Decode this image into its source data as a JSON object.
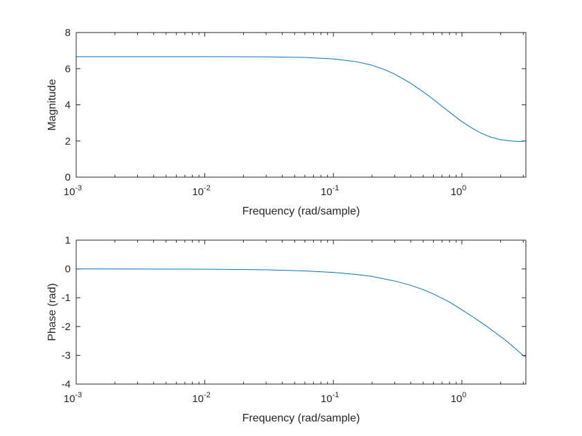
{
  "chart_data": [
    {
      "type": "line",
      "name": "magnitude",
      "xscale": "log",
      "xlim": [
        0.001,
        3.14159
      ],
      "ylim": [
        0,
        8
      ],
      "xlabel": "Frequency (rad/sample)",
      "ylabel": "Magnitude",
      "yticks": [
        "0",
        "2",
        "4",
        "6",
        "8"
      ],
      "xticks": [
        {
          "base": "10",
          "exp": "-3"
        },
        {
          "base": "10",
          "exp": "-2"
        },
        {
          "base": "10",
          "exp": "-1"
        },
        {
          "base": "10",
          "exp": "0"
        }
      ],
      "grid": false,
      "line_color": "#0072BD",
      "series": [
        {
          "x": [
            0.001,
            0.003,
            0.01,
            0.03,
            0.06,
            0.1,
            0.15,
            0.2,
            0.25,
            0.3,
            0.4,
            0.5,
            0.6,
            0.7,
            0.8,
            1.0,
            1.2,
            1.4,
            1.7,
            2.0,
            2.4,
            2.8,
            3.14159
          ],
          "y": [
            6.667,
            6.667,
            6.665,
            6.654,
            6.622,
            6.54,
            6.39,
            6.19,
            5.95,
            5.7,
            5.19,
            4.72,
            4.3,
            3.92,
            3.6,
            3.07,
            2.71,
            2.44,
            2.2,
            2.07,
            2.0,
            1.97,
            2.0
          ]
        }
      ]
    },
    {
      "type": "line",
      "name": "phase",
      "xscale": "log",
      "xlim": [
        0.001,
        3.14159
      ],
      "ylim": [
        -4,
        1
      ],
      "xlabel": "Frequency (rad/sample)",
      "ylabel": "Phase (rad)",
      "yticks": [
        "-4",
        "-3",
        "-2",
        "-1",
        "0",
        "1"
      ],
      "xticks": [
        {
          "base": "10",
          "exp": "-3"
        },
        {
          "base": "10",
          "exp": "-2"
        },
        {
          "base": "10",
          "exp": "-1"
        },
        {
          "base": "10",
          "exp": "0"
        }
      ],
      "grid": false,
      "line_color": "#0072BD",
      "series": [
        {
          "x": [
            0.001,
            0.003,
            0.01,
            0.03,
            0.06,
            0.1,
            0.15,
            0.2,
            0.3,
            0.4,
            0.5,
            0.6,
            0.8,
            1.0,
            1.2,
            1.5,
            1.8,
            2.1,
            2.4,
            2.7,
            3.0,
            3.14159
          ],
          "y": [
            0.0,
            -0.003,
            -0.01,
            -0.03,
            -0.07,
            -0.12,
            -0.19,
            -0.26,
            -0.42,
            -0.57,
            -0.72,
            -0.87,
            -1.15,
            -1.42,
            -1.65,
            -1.94,
            -2.2,
            -2.42,
            -2.63,
            -2.83,
            -3.01,
            -3.06
          ]
        }
      ]
    }
  ]
}
